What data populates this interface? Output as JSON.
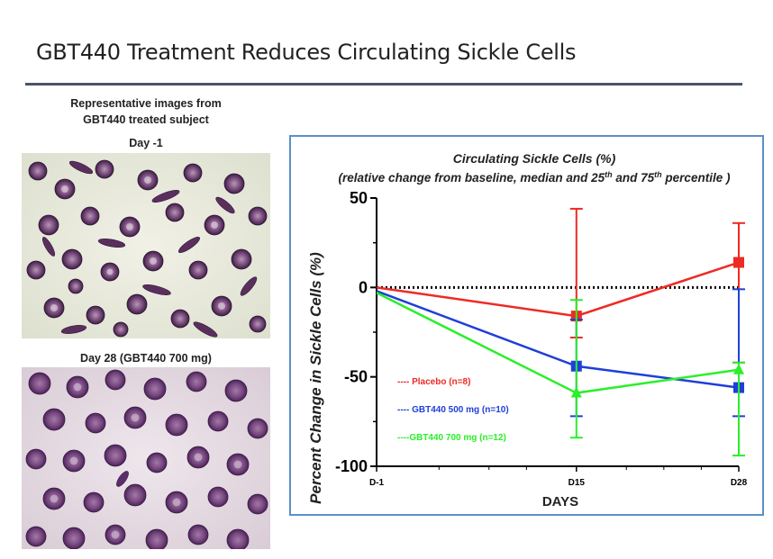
{
  "slide": {
    "title": "GBT440 Treatment Reduces Circulating Sickle Cells"
  },
  "images": {
    "caption_line1": "Representative images from",
    "caption_line2": "GBT440 treated subject",
    "before_label": "Day -1",
    "after_label": "Day 28 (GBT440 700 mg)"
  },
  "chart_data": {
    "type": "line",
    "title": "Circulating Sickle Cells (%)",
    "subtitle_pre": "(relative change from baseline, median and 25",
    "subtitle_sup1": "th",
    "subtitle_mid": " and 75",
    "subtitle_sup2": "th",
    "subtitle_post": " percentile )",
    "xlabel": "DAYS",
    "ylabel": "Percent Change in Sickle Cells (%)",
    "x_ticks": [
      "D-1",
      "D15",
      "D28"
    ],
    "x_values": [
      -1,
      15,
      28
    ],
    "xlim": [
      -1,
      28
    ],
    "y_ticks": [
      50,
      0,
      -50,
      -100
    ],
    "ylim": [
      -100,
      50
    ],
    "reference_line": 0,
    "series": [
      {
        "name": "---- Placebo (n=8)",
        "color": "#ee2a24",
        "marker": "square",
        "x": [
          -1,
          15,
          28
        ],
        "y": [
          0,
          -16,
          14
        ],
        "err_low": [
          null,
          -28,
          -42
        ],
        "err_high": [
          null,
          44,
          36
        ]
      },
      {
        "name": "---- GBT440 500 mg (n=10)",
        "color": "#1f3fd8",
        "marker": "square",
        "x": [
          -1,
          15,
          28
        ],
        "y": [
          -2,
          -44,
          -56
        ],
        "err_low": [
          null,
          -72,
          -72
        ],
        "err_high": [
          null,
          -18,
          -1
        ]
      },
      {
        "name": "----GBT440 700 mg (n=12)",
        "color": "#2aef2a",
        "marker": "triangle",
        "x": [
          -1,
          15,
          28
        ],
        "y": [
          -3,
          -59,
          -46
        ],
        "err_low": [
          null,
          -84,
          -94
        ],
        "err_high": [
          null,
          -7,
          -42
        ]
      }
    ]
  }
}
